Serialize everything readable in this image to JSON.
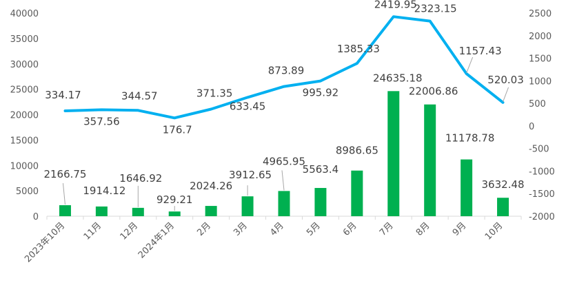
{
  "chart_data": {
    "type": "bar",
    "categories": [
      "2023年10月",
      "11月",
      "12月",
      "2024年1月",
      "2月",
      "3月",
      "4月",
      "5月",
      "6月",
      "7月",
      "8月",
      "9月",
      "10月"
    ],
    "series": [
      {
        "type": "bar",
        "axis": "left",
        "color": "#00b050",
        "values": [
          2166.75,
          1914.12,
          1646.92,
          929.21,
          2024.26,
          3912.65,
          4965.95,
          5563.4,
          8986.65,
          24635.18,
          22006.86,
          11178.78,
          3632.48
        ],
        "labels": [
          "2166.75",
          "1914.12",
          "1646.92",
          "929.21",
          "2024.26",
          "3912.65",
          "4965.95",
          "5563.4",
          "8986.65",
          "24635.18",
          "22006.86",
          "11178.78",
          "3632.48"
        ]
      },
      {
        "type": "line",
        "axis": "right",
        "color": "#00b0f0",
        "values": [
          334.17,
          357.56,
          344.57,
          176.7,
          371.35,
          633.45,
          873.89,
          995.92,
          1385.33,
          2419.95,
          2323.15,
          1157.43,
          520.03
        ],
        "labels": [
          "334.17",
          "357.56",
          "344.57",
          "176.7",
          "371.35",
          "633.45",
          "873.89",
          "995.92",
          "1385.33",
          "2419.95",
          "2323.15",
          "1157.43",
          "520.03"
        ]
      }
    ],
    "y_left": {
      "lim": [
        0,
        40000
      ],
      "ticks": [
        "0",
        "5000",
        "10000",
        "15000",
        "20000",
        "25000",
        "30000",
        "35000",
        "40000"
      ]
    },
    "y_right": {
      "lim": [
        -2000,
        2500
      ],
      "ticks": [
        "-2000",
        "-1500",
        "-1000",
        "-500",
        "0",
        "500",
        "1000",
        "1500",
        "2000",
        "2500"
      ]
    },
    "grid": false,
    "legend": "none"
  }
}
